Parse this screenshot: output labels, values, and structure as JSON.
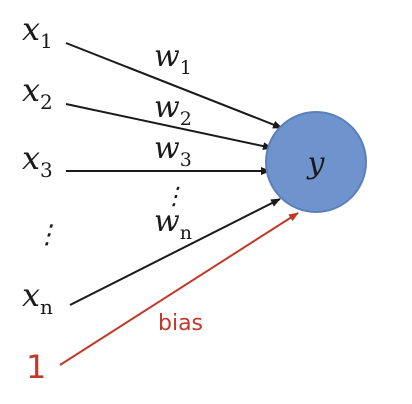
{
  "diagram": {
    "title": "",
    "inputs": [
      {
        "base": "x",
        "sub": "1"
      },
      {
        "base": "x",
        "sub": "2"
      },
      {
        "base": "x",
        "sub": "3"
      },
      {
        "base": "⋮",
        "sub": ""
      },
      {
        "base": "x",
        "sub": "n"
      }
    ],
    "weights": [
      {
        "base": "w",
        "sub": "1"
      },
      {
        "base": "w",
        "sub": "2"
      },
      {
        "base": "w",
        "sub": "3"
      },
      {
        "base": "⋮",
        "sub": ""
      },
      {
        "base": "w",
        "sub": "n"
      }
    ],
    "bias_input": "1",
    "bias_label": "bias",
    "output": "y",
    "colors": {
      "node_fill": "#6f93cc",
      "node_stroke": "#5a80bb",
      "edge": "#1a1a1a",
      "bias": "#c0392b"
    }
  }
}
